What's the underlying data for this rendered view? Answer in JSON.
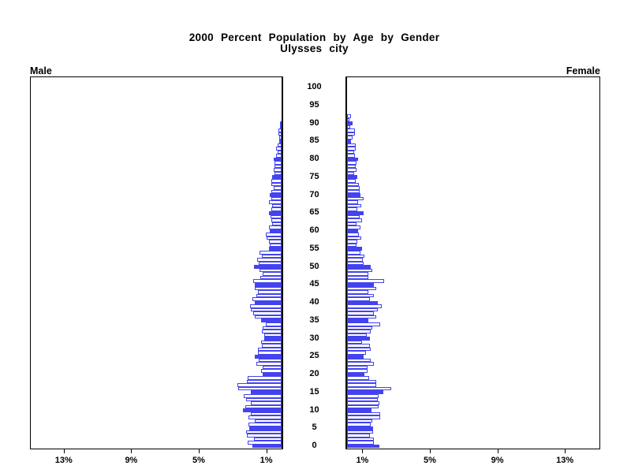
{
  "chart_data": {
    "type": "bar",
    "variant": "population-pyramid",
    "title": "2000 Percent Population by Age by Gender",
    "subtitle": "Ulysses city",
    "left_group": "Male",
    "right_group": "Female",
    "xlabel_suffix": "%",
    "x_tick_values": [
      1,
      5,
      9,
      13
    ],
    "x_tick_labels": [
      "1%",
      "5%",
      "9%",
      "13%"
    ],
    "x_max_pct": 15,
    "age_min": 0,
    "age_max": 100,
    "age_tick_step": 5,
    "age_tick_labels": [
      "0",
      "5",
      "10",
      "15",
      "20",
      "25",
      "30",
      "35",
      "40",
      "45",
      "50",
      "55",
      "60",
      "65",
      "70",
      "75",
      "80",
      "85",
      "90",
      "95",
      "100"
    ],
    "highlight_every": 5,
    "legend_position": "none",
    "grid": false,
    "ages": [
      0,
      1,
      2,
      3,
      4,
      5,
      6,
      7,
      8,
      9,
      10,
      11,
      12,
      13,
      14,
      15,
      16,
      17,
      18,
      19,
      20,
      21,
      22,
      23,
      24,
      25,
      26,
      27,
      28,
      29,
      30,
      31,
      32,
      33,
      34,
      35,
      36,
      37,
      38,
      39,
      40,
      41,
      42,
      43,
      44,
      45,
      46,
      47,
      48,
      49,
      50,
      51,
      52,
      53,
      54,
      55,
      56,
      57,
      58,
      59,
      60,
      61,
      62,
      63,
      64,
      65,
      66,
      67,
      68,
      69,
      70,
      71,
      72,
      73,
      74,
      75,
      76,
      77,
      78,
      79,
      80,
      81,
      82,
      83,
      84,
      85,
      86,
      87,
      88,
      89,
      90,
      91,
      92
    ],
    "series": [
      {
        "name": "Male",
        "unit": "percent",
        "values": [
          1.75,
          2.0,
          1.65,
          2.05,
          2.1,
          1.9,
          1.95,
          1.6,
          1.95,
          1.8,
          2.3,
          2.15,
          1.8,
          2.1,
          2.25,
          1.8,
          2.55,
          2.6,
          2.05,
          2.0,
          1.1,
          1.2,
          1.1,
          1.5,
          1.35,
          1.6,
          1.4,
          1.4,
          1.15,
          1.2,
          1.05,
          1.05,
          1.15,
          1.1,
          0.95,
          1.2,
          1.6,
          1.7,
          1.8,
          1.85,
          1.6,
          1.75,
          1.5,
          1.4,
          1.6,
          1.6,
          1.7,
          1.25,
          1.1,
          1.3,
          1.65,
          1.35,
          1.45,
          1.15,
          1.3,
          0.75,
          0.7,
          0.75,
          0.9,
          0.95,
          0.7,
          0.75,
          0.55,
          0.6,
          0.65,
          0.75,
          0.6,
          0.55,
          0.75,
          0.6,
          0.7,
          0.6,
          0.45,
          0.6,
          0.6,
          0.55,
          0.4,
          0.45,
          0.4,
          0.4,
          0.45,
          0.35,
          0.25,
          0.35,
          0.25,
          0.15,
          0.15,
          0.2,
          0.2,
          0.1,
          0.05,
          0,
          0
        ]
      },
      {
        "name": "Female",
        "unit": "percent",
        "values": [
          1.9,
          1.6,
          1.6,
          1.35,
          1.55,
          1.55,
          1.4,
          1.5,
          1.95,
          1.95,
          1.45,
          1.85,
          1.9,
          1.8,
          1.85,
          2.15,
          2.6,
          1.75,
          1.75,
          1.3,
          1.05,
          1.2,
          1.2,
          1.6,
          1.4,
          1.0,
          1.1,
          1.4,
          1.35,
          0.9,
          1.35,
          1.15,
          1.4,
          1.5,
          1.95,
          1.25,
          1.75,
          1.6,
          1.8,
          2.05,
          1.8,
          1.35,
          1.6,
          1.25,
          1.75,
          1.6,
          2.2,
          1.25,
          1.25,
          1.5,
          1.4,
          1.0,
          0.95,
          1.05,
          0.8,
          0.9,
          0.55,
          0.6,
          0.85,
          0.7,
          0.65,
          0.8,
          0.55,
          0.9,
          0.75,
          1.0,
          0.6,
          0.85,
          0.65,
          1.0,
          0.8,
          0.75,
          0.75,
          0.7,
          0.5,
          0.6,
          0.4,
          0.55,
          0.5,
          0.55,
          0.65,
          0.45,
          0.4,
          0.5,
          0.5,
          0.25,
          0.35,
          0.45,
          0.45,
          0.2,
          0.35,
          0.15,
          0.25
        ]
      }
    ],
    "colors": {
      "bar_blue": "#4343ef",
      "bar_open_fill": "#ffffff",
      "axis_black": "#000000",
      "background": "#ffffff"
    }
  }
}
